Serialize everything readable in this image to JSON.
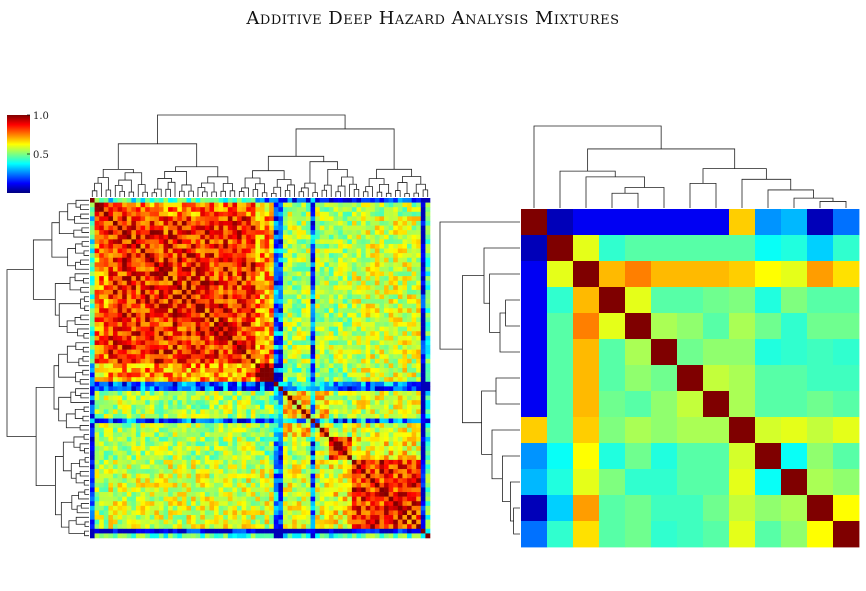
{
  "title": "Additive Deep Hazard Analysis Mixtures",
  "colors": {
    "background": "#ffffff",
    "dendrogram_line": "#222222",
    "colormap": [
      "#00007f",
      "#0000ff",
      "#007fff",
      "#00ffff",
      "#7fff7f",
      "#ffff00",
      "#ff7f00",
      "#ff0000",
      "#7f0000"
    ]
  },
  "chart_data": [
    {
      "type": "heatmap",
      "name": "",
      "description_colormap": "jet",
      "clim": [
        0.0,
        1.0
      ],
      "colorbar": {
        "ticks": [
          {
            "value": 1.0,
            "label": "1.0"
          },
          {
            "value": 0.5,
            "label": "0.5"
          }
        ],
        "placement": "top-left"
      },
      "n": 74,
      "row_dendrogram": true,
      "col_dendrogram": true,
      "blocks": [
        {
          "range": [
            0,
            4
          ],
          "within": 0.85
        },
        {
          "range": [
            4,
            36
          ],
          "within": 0.86
        },
        {
          "range": [
            36,
            40
          ],
          "within": 0.92
        },
        {
          "range": [
            40,
            52
          ],
          "within": 0.68
        },
        {
          "range": [
            52,
            57
          ],
          "within": 0.88
        },
        {
          "range": [
            57,
            72
          ],
          "within": 0.86
        },
        {
          "range": [
            72,
            74
          ],
          "within": 0.8
        }
      ]
    },
    {
      "type": "heatmap",
      "colormap": "jet",
      "clim": [
        0.0,
        1.0
      ],
      "n": 13,
      "row_dendrogram": true,
      "col_dendrogram": true,
      "matrix": [
        [
          1.0,
          0.05,
          0.1,
          0.1,
          0.1,
          0.1,
          0.1,
          0.1,
          0.7,
          0.25,
          0.28,
          0.05,
          0.22
        ],
        [
          0.05,
          1.0,
          0.62,
          0.4,
          0.45,
          0.45,
          0.45,
          0.45,
          0.45,
          0.35,
          0.38,
          0.3,
          0.4
        ],
        [
          0.1,
          0.62,
          1.0,
          0.72,
          0.78,
          0.72,
          0.72,
          0.72,
          0.7,
          0.65,
          0.62,
          0.75,
          0.68
        ],
        [
          0.1,
          0.4,
          0.72,
          1.0,
          0.62,
          0.45,
          0.45,
          0.48,
          0.5,
          0.38,
          0.5,
          0.45,
          0.45
        ],
        [
          0.1,
          0.45,
          0.78,
          0.62,
          1.0,
          0.55,
          0.52,
          0.45,
          0.55,
          0.48,
          0.4,
          0.48,
          0.48
        ],
        [
          0.1,
          0.45,
          0.72,
          0.45,
          0.55,
          1.0,
          0.48,
          0.52,
          0.52,
          0.38,
          0.4,
          0.42,
          0.4
        ],
        [
          0.1,
          0.45,
          0.72,
          0.45,
          0.52,
          0.48,
          1.0,
          0.58,
          0.55,
          0.45,
          0.45,
          0.42,
          0.42
        ],
        [
          0.1,
          0.45,
          0.72,
          0.48,
          0.45,
          0.52,
          0.58,
          1.0,
          0.55,
          0.45,
          0.45,
          0.48,
          0.45
        ],
        [
          0.7,
          0.45,
          0.7,
          0.5,
          0.55,
          0.52,
          0.55,
          0.55,
          1.0,
          0.6,
          0.62,
          0.58,
          0.62
        ],
        [
          0.25,
          0.35,
          0.65,
          0.38,
          0.48,
          0.38,
          0.45,
          0.45,
          0.6,
          1.0,
          0.35,
          0.52,
          0.45
        ],
        [
          0.28,
          0.38,
          0.62,
          0.5,
          0.4,
          0.4,
          0.45,
          0.45,
          0.62,
          0.35,
          1.0,
          0.55,
          0.52
        ],
        [
          0.05,
          0.3,
          0.75,
          0.45,
          0.48,
          0.42,
          0.42,
          0.48,
          0.58,
          0.52,
          0.55,
          1.0,
          0.65
        ],
        [
          0.22,
          0.4,
          0.68,
          0.45,
          0.48,
          0.4,
          0.42,
          0.45,
          0.62,
          0.45,
          0.52,
          0.65,
          1.0
        ]
      ]
    }
  ]
}
